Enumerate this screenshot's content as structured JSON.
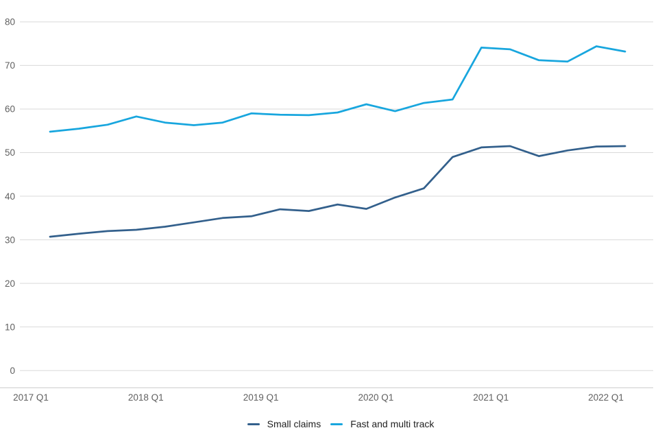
{
  "chart_data": {
    "type": "line",
    "title": "",
    "xlabel": "",
    "ylabel": "",
    "categories": [
      "2017 Q1",
      "2017 Q2",
      "2017 Q3",
      "2017 Q4",
      "2018 Q1",
      "2018 Q2",
      "2018 Q3",
      "2018 Q4",
      "2019 Q1",
      "2019 Q2",
      "2019 Q3",
      "2019 Q4",
      "2020 Q1",
      "2020 Q2",
      "2020 Q3",
      "2020 Q4",
      "2021 Q1",
      "2021 Q2",
      "2021 Q3",
      "2021 Q4",
      "2022 Q1"
    ],
    "series": [
      {
        "name": "Small claims",
        "color": "#33608C",
        "values": [
          30.7,
          31.4,
          32.0,
          32.3,
          33.0,
          34.0,
          35.0,
          35.4,
          37.0,
          36.6,
          38.1,
          37.1,
          39.7,
          41.8,
          49.0,
          51.2,
          51.5,
          49.2,
          50.5,
          51.4,
          51.5
        ]
      },
      {
        "name": "Fast and multi track",
        "color": "#18A6DE",
        "values": [
          54.8,
          55.5,
          56.4,
          58.3,
          56.9,
          56.3,
          56.9,
          59.0,
          58.7,
          58.6,
          59.2,
          61.1,
          59.5,
          61.4,
          62.2,
          74.1,
          73.7,
          71.2,
          70.9,
          74.4,
          73.2
        ]
      }
    ],
    "x_tick_indices": [
      0,
      4,
      8,
      12,
      16,
      20
    ],
    "x_tick_labels": [
      "2017 Q1",
      "2018 Q1",
      "2019 Q1",
      "2020 Q1",
      "2021 Q1",
      "2022 Q1"
    ],
    "y_ticks": [
      0,
      10,
      20,
      30,
      40,
      50,
      60,
      70,
      80
    ],
    "ylim": [
      0,
      80
    ],
    "grid": "horizontal",
    "gridline_color": "#d9d9d9",
    "axis_line_color": "#c9c9c9",
    "tick_label_color": "#5f5f5f",
    "legend_position": "bottom"
  }
}
